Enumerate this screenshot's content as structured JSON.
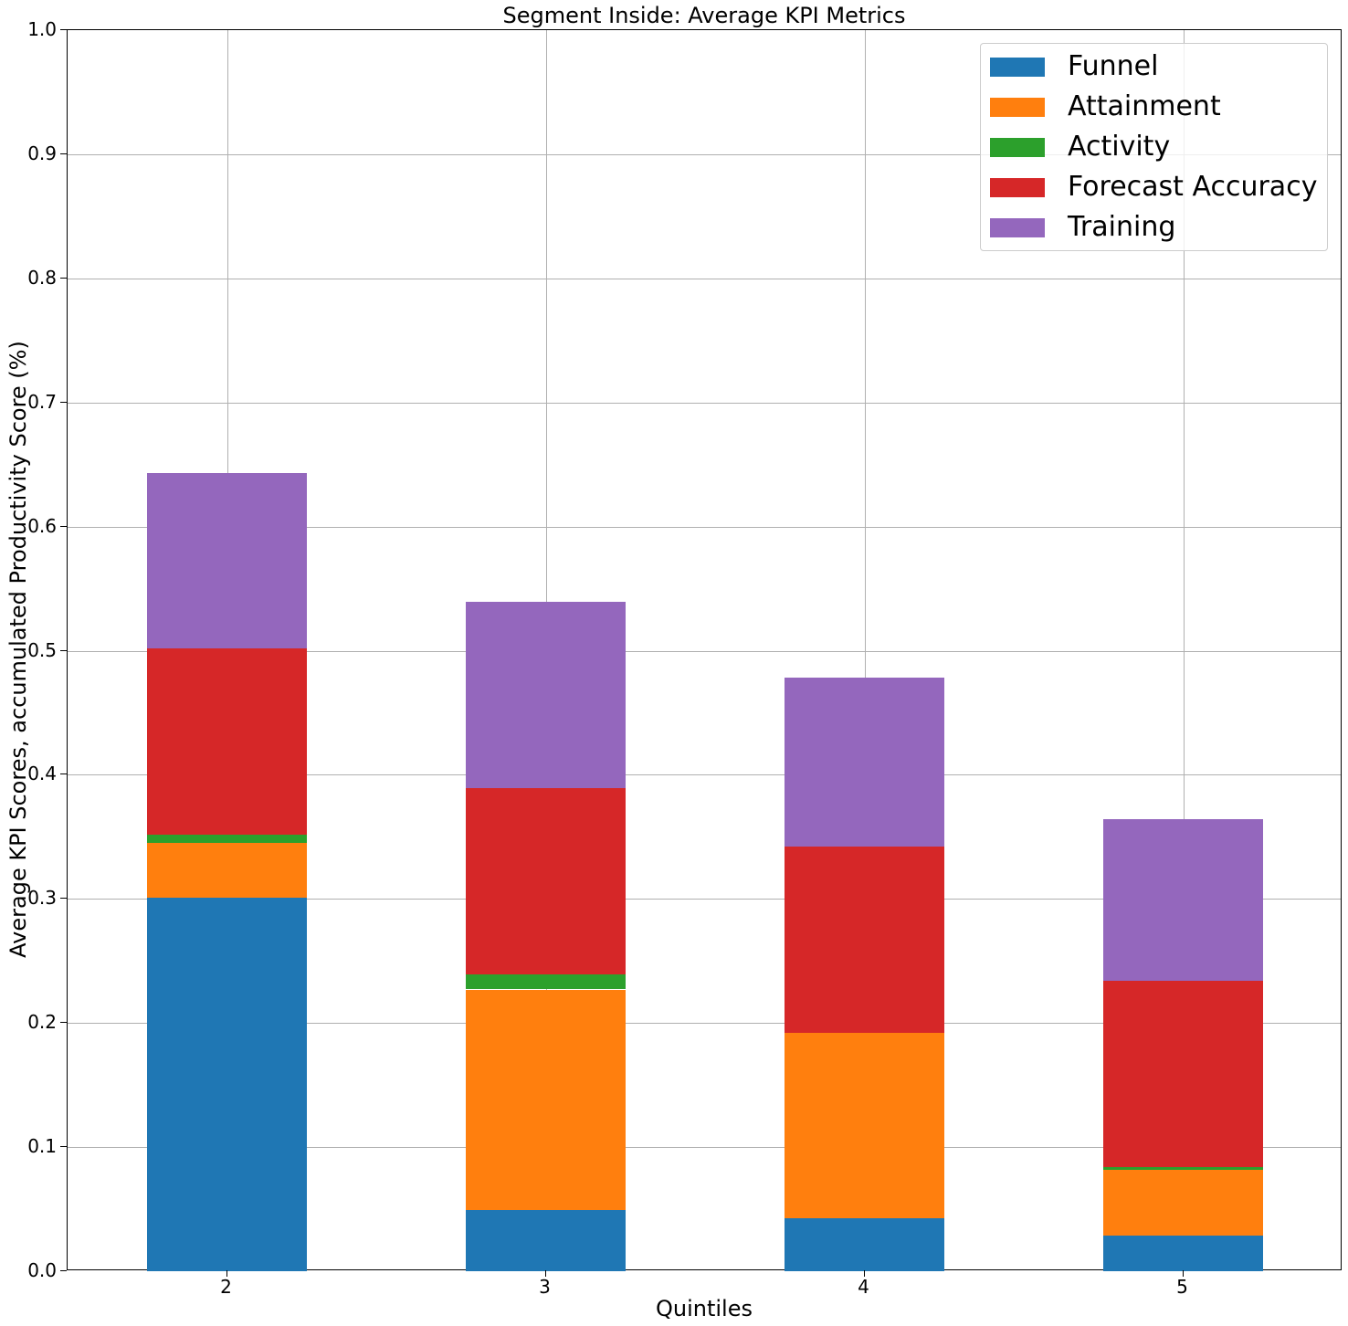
{
  "chart_data": {
    "type": "bar",
    "stacked": true,
    "title": "Segment Inside: Average KPI Metrics",
    "xlabel": "Quintiles",
    "ylabel": "Average KPI Scores, accumulated Productivity Score (%)",
    "ylim": [
      0,
      1.0
    ],
    "yticks": [
      "0.0",
      "0.1",
      "0.2",
      "0.3",
      "0.4",
      "0.5",
      "0.6",
      "0.7",
      "0.8",
      "0.9",
      "1.0"
    ],
    "categories": [
      "2",
      "3",
      "4",
      "5"
    ],
    "grid": true,
    "legend_position": "upper right",
    "series": [
      {
        "name": "Funnel",
        "color": "#1f77b4",
        "values": [
          0.301,
          0.049,
          0.043,
          0.029
        ]
      },
      {
        "name": "Attainment",
        "color": "#ff7f0e",
        "values": [
          0.044,
          0.178,
          0.149,
          0.053
        ]
      },
      {
        "name": "Activity",
        "color": "#2ca02c",
        "values": [
          0.007,
          0.012,
          0.0,
          0.002
        ]
      },
      {
        "name": "Forecast Accuracy",
        "color": "#d62728",
        "values": [
          0.15,
          0.15,
          0.15,
          0.15
        ]
      },
      {
        "name": "Training",
        "color": "#9467bd",
        "values": [
          0.141,
          0.15,
          0.136,
          0.13
        ]
      }
    ],
    "totals": [
      0.643,
      0.539,
      0.478,
      0.364
    ]
  }
}
